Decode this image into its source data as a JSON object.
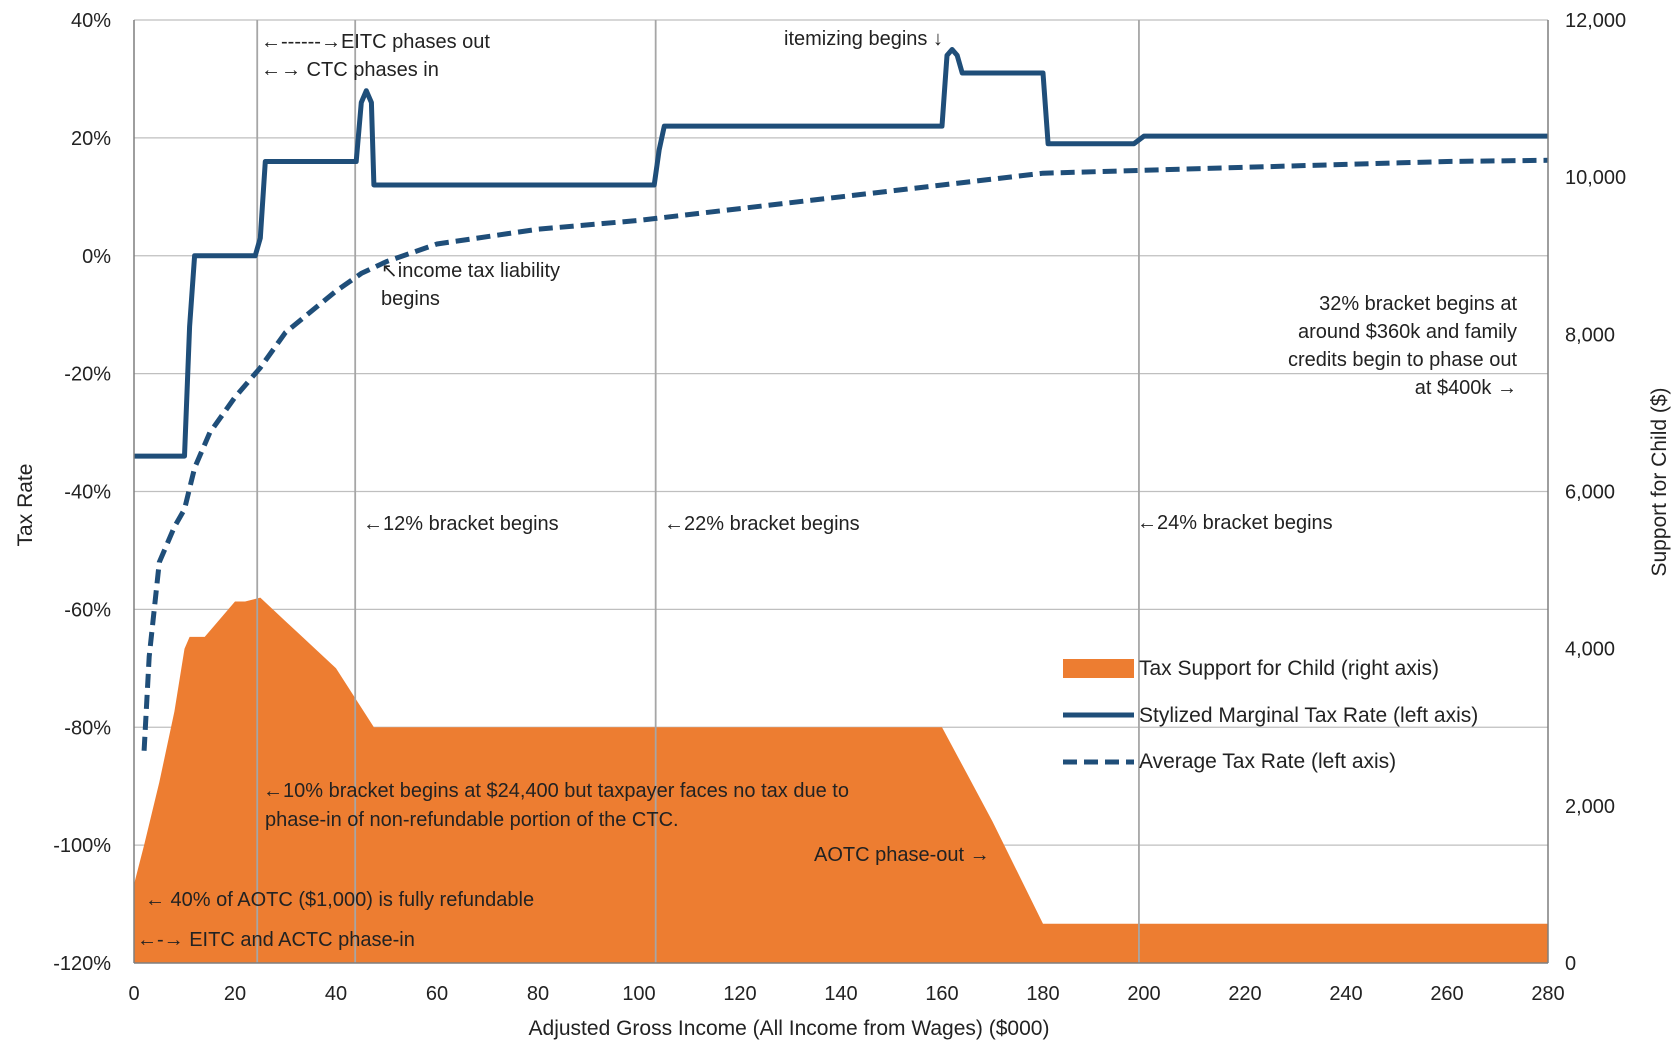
{
  "chart_data": {
    "type": "line",
    "title": "",
    "xlabel": "Adjusted Gross Income (All Income from Wages) ($000)",
    "ylabel_left": "Tax Rate",
    "ylabel_right": "Support for Child ($)",
    "xlim": [
      0,
      280
    ],
    "ylim_left": [
      -120,
      40
    ],
    "ylim_right": [
      0,
      12000
    ],
    "x_ticks": [
      0,
      20,
      40,
      60,
      80,
      100,
      120,
      140,
      160,
      180,
      200,
      220,
      240,
      260,
      280
    ],
    "y_left_ticks": [
      40,
      20,
      0,
      -20,
      -40,
      -60,
      -80,
      -100,
      -120
    ],
    "y_left_tick_labels": [
      "40%",
      "20%",
      "0%",
      "-20%",
      "-40%",
      "-60%",
      "-80%",
      "-100%",
      "-120%"
    ],
    "y_right_ticks": [
      0,
      2000,
      4000,
      6000,
      8000,
      10000,
      12000
    ],
    "y_right_tick_labels": [
      "0",
      "2,000",
      "4,000",
      "6,000",
      "8,000",
      "10,000",
      "12,000"
    ],
    "grid": "horizontal and vertical reference lines",
    "legend_position": "right-middle",
    "colors": {
      "area": "#ED7D31",
      "marginal": "#1F4E79",
      "average": "#1F4E79",
      "grid": "#BFBFBF"
    },
    "vlines": [
      24.4,
      43.8,
      103.3,
      199.0
    ],
    "series": [
      {
        "name": "Tax Support for Child (right axis)",
        "type": "area",
        "axis": "right",
        "points": [
          [
            0,
            1000
          ],
          [
            2,
            1500
          ],
          [
            5,
            2300
          ],
          [
            8,
            3200
          ],
          [
            10,
            4000
          ],
          [
            11,
            4150
          ],
          [
            14,
            4150
          ],
          [
            16,
            4300
          ],
          [
            20,
            4600
          ],
          [
            22,
            4600
          ],
          [
            25,
            4650
          ],
          [
            30,
            4350
          ],
          [
            35,
            4050
          ],
          [
            40,
            3750
          ],
          [
            45,
            3250
          ],
          [
            47.5,
            3000
          ],
          [
            160,
            3000
          ],
          [
            165,
            2400
          ],
          [
            170,
            1800
          ],
          [
            180,
            500
          ],
          [
            280,
            500
          ]
        ]
      },
      {
        "name": "Stylized Marginal Tax Rate (left axis)",
        "type": "line",
        "axis": "left",
        "points": [
          [
            0,
            -34
          ],
          [
            10,
            -34
          ],
          [
            11,
            -12
          ],
          [
            12,
            0
          ],
          [
            24,
            0
          ],
          [
            25,
            3
          ],
          [
            26,
            16
          ],
          [
            44,
            16
          ],
          [
            45,
            26
          ],
          [
            46,
            28
          ],
          [
            47,
            26
          ],
          [
            47.5,
            12
          ],
          [
            103,
            12
          ],
          [
            104,
            18
          ],
          [
            105,
            22
          ],
          [
            160,
            22
          ],
          [
            161,
            34
          ],
          [
            162,
            35
          ],
          [
            163,
            34
          ],
          [
            164,
            31
          ],
          [
            180,
            31
          ],
          [
            181,
            19
          ],
          [
            198,
            19
          ],
          [
            200,
            20.3
          ],
          [
            280,
            20.3
          ]
        ]
      },
      {
        "name": "Average Tax Rate (left axis)",
        "type": "line",
        "axis": "left",
        "dashed": true,
        "points": [
          [
            2,
            -84
          ],
          [
            3,
            -68
          ],
          [
            5,
            -52
          ],
          [
            8,
            -46
          ],
          [
            10,
            -43
          ],
          [
            12,
            -36
          ],
          [
            15,
            -30
          ],
          [
            20,
            -24
          ],
          [
            25,
            -19
          ],
          [
            30,
            -13
          ],
          [
            40,
            -6
          ],
          [
            45,
            -3
          ],
          [
            50,
            -1
          ],
          [
            60,
            2
          ],
          [
            80,
            4.5
          ],
          [
            100,
            6
          ],
          [
            120,
            8
          ],
          [
            140,
            10
          ],
          [
            160,
            12
          ],
          [
            180,
            14
          ],
          [
            200,
            14.5
          ],
          [
            220,
            15
          ],
          [
            240,
            15.5
          ],
          [
            260,
            16
          ],
          [
            280,
            16.2
          ]
        ]
      }
    ],
    "annotations": [
      "←------→EITC phases out",
      "←→ CTC phases in",
      "itemizing begins ↓",
      "↖income tax liability",
      "begins",
      "32% bracket begins at",
      "around $360k and family",
      "credits begin to phase out",
      "at $400k →",
      "←12% bracket begins",
      "←22% bracket begins",
      "←24% bracket begins",
      "←10% bracket begins at $24,400 but taxpayer faces no tax due to",
      "phase-in of non-refundable portion of the CTC.",
      "AOTC phase-out →",
      "← 40% of AOTC ($1,000) is fully refundable",
      "←-→  EITC and ACTC phase-in"
    ]
  }
}
